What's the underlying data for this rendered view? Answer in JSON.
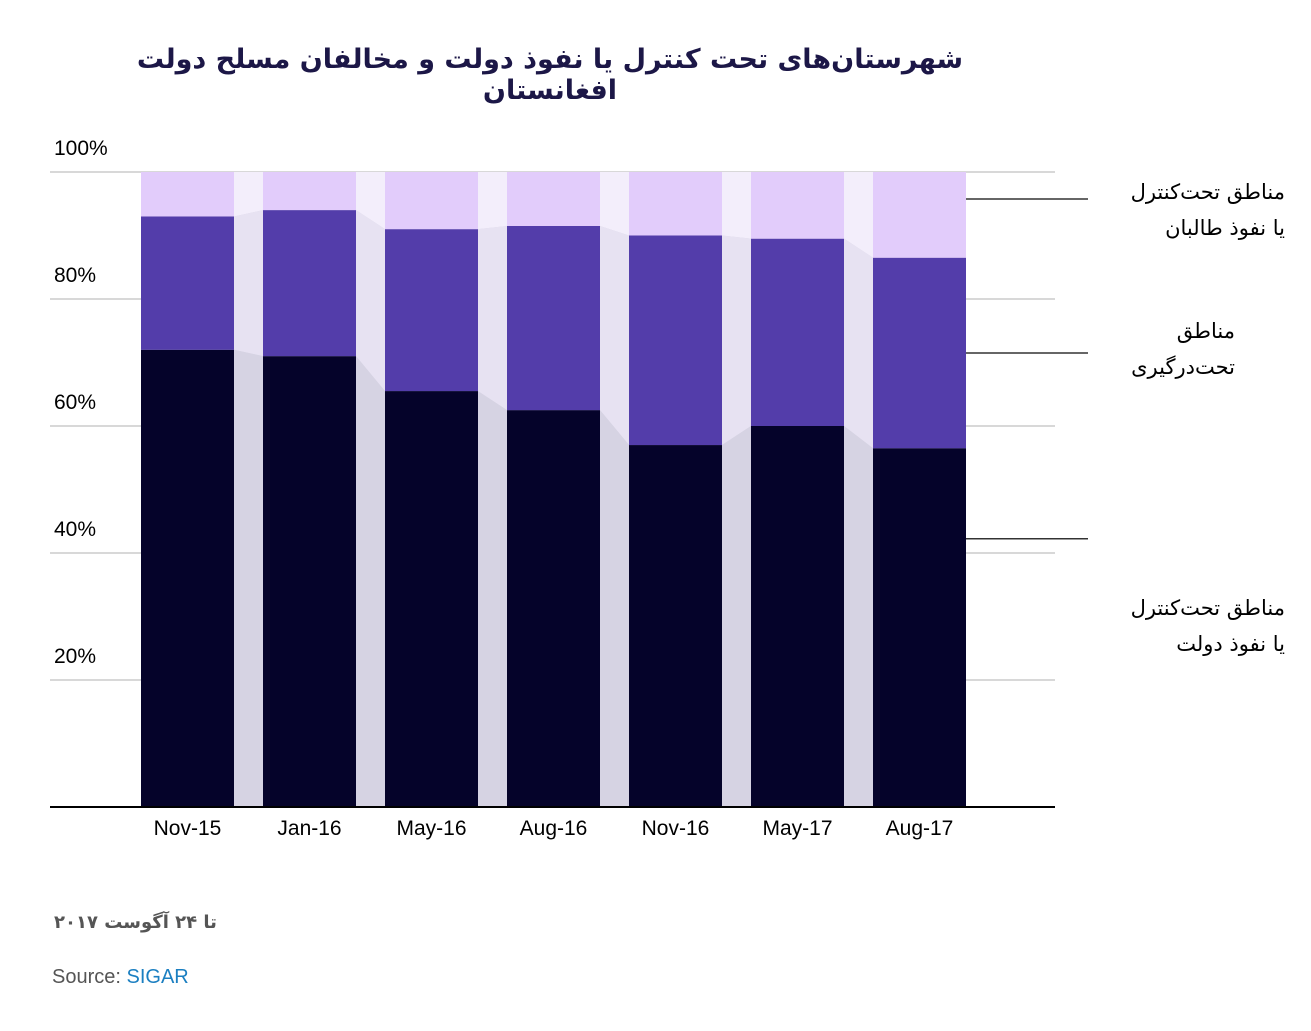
{
  "chart_data": {
    "type": "bar",
    "stacked": true,
    "title": "شهرستان‌های تحت کنترل یا نفوذ دولت و مخالفان مسلح دولت افغانستان",
    "categories": [
      "Nov-15",
      "Jan-16",
      "May-16",
      "Aug-16",
      "Nov-16",
      "May-17",
      "Aug-17"
    ],
    "series": [
      {
        "name": "مناطق تحت‌کنترل یا نفوذ دولت",
        "color": "#05032a",
        "values": [
          72,
          71,
          65.5,
          62.5,
          57,
          60,
          56.5
        ]
      },
      {
        "name": "مناطق تحت‌درگیری",
        "color": "#533daa",
        "values": [
          21,
          23,
          25.5,
          29,
          33,
          29.5,
          30
        ]
      },
      {
        "name": "مناطق تحت‌کنترل یا نفوذ طالبان",
        "color": "#e2ccfb",
        "values": [
          7,
          6,
          9,
          8.5,
          10,
          10.5,
          13.5
        ]
      }
    ],
    "yticks": [
      "20%",
      "40%",
      "60%",
      "80%",
      "100%"
    ],
    "ylim": [
      0,
      100
    ],
    "grid": true,
    "legend_placement": "right"
  },
  "legend": {
    "taliban": [
      "مناطق تحت‌کنترل",
      "یا نفوذ طالبان"
    ],
    "contested": [
      "مناطق",
      "تحت‌درگیری"
    ],
    "government": [
      "مناطق تحت‌کنترل",
      "یا نفوذ دولت"
    ]
  },
  "note": "تا ۲۴ آگوست ۲۰۱۷",
  "source": {
    "prefix": "Source: ",
    "link_label": "SIGAR"
  },
  "colors": {
    "connector": "#d6d3e3",
    "grid": "#cccccc",
    "axis": "#000000"
  }
}
